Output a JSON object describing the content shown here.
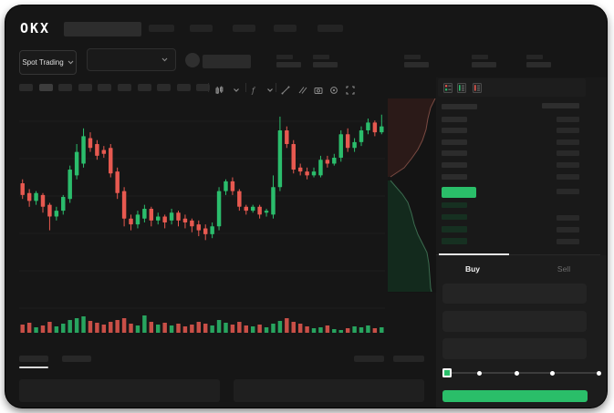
{
  "header": {
    "logo_text": "OKX",
    "pair_placeholder": true,
    "nav_placeholder_count": 5
  },
  "subheader": {
    "market_selector_label": "Spot Trading",
    "pair_dropdown_collapsed": true,
    "coin_avatar": true,
    "ticker_stat_placeholder_count": 5
  },
  "toolbar": {
    "interval_placeholder_count": 10,
    "active_interval_index": 1,
    "icons": [
      "candle-style-icon",
      "chevron-down-icon",
      "indicators-icon",
      "chevron-down-icon",
      "line-tool-icon",
      "compare-lines-icon",
      "camera-icon",
      "settings-icon",
      "fullscreen-icon"
    ]
  },
  "order_book": {
    "view_mode_icons": [
      "book-combined-icon",
      "book-bids-icon",
      "book-asks-icon"
    ],
    "ask_row_count": 6,
    "bid_row_count": 4,
    "bid_right_bar_rows": [
      1,
      2,
      3
    ],
    "current_price_highlight": true
  },
  "trade_panel": {
    "tabs": [
      {
        "label": "Buy",
        "active": true
      },
      {
        "label": "Sell",
        "active": false
      }
    ],
    "input_field_count": 3,
    "slider": {
      "stops": 5,
      "selected_index": 0
    },
    "submit_button_label": ""
  },
  "bottom_area": {
    "left_tab_placeholder_count": 2,
    "active_left_tab_index": 0,
    "right_tab_placeholder_count": 2,
    "panel_placeholder_count": 2
  },
  "colors": {
    "green": "#2bbd6c",
    "red": "#e75950",
    "price_highlight_green": "#2abe69",
    "ask_placeholder": "#2c2c2c",
    "bid_placeholder": "#163021",
    "placeholder": "#2a2a2a",
    "placeholder_dark": "#242424",
    "placeholder_light": "#3d3d3d",
    "grid_line": "#1e1e1e",
    "depth_ask_fill": "#2b1a18",
    "depth_ask_line": "#7a4a42",
    "depth_bid_fill": "#132a1d",
    "depth_bid_line": "#3b6b4f",
    "panel_bg": "#191919",
    "strip_bg": "#1d1d1d",
    "form_bg": "#1c1c1c",
    "field_bg": "#242424",
    "white": "#f2f2f2",
    "muted_text": "#6e6e6e",
    "icon_gray": "#8a8a8a"
  },
  "chart_data": [
    {
      "type": "candlestick",
      "title": "",
      "xlabel": "",
      "ylabel": "",
      "axis_labels_visible": false,
      "grid": "faint horizontal lines",
      "scale_note": "no numeric axes shown in UI; OHLC in normalized 0-100 units (100 = pane top)",
      "candles_ohlc": [
        [
          60,
          62,
          52,
          54
        ],
        [
          55,
          57,
          48,
          51
        ],
        [
          51,
          56,
          49,
          55
        ],
        [
          54,
          55,
          45,
          48
        ],
        [
          49,
          50,
          36,
          43
        ],
        [
          43,
          48,
          41,
          46
        ],
        [
          46,
          54,
          44,
          53
        ],
        [
          52,
          69,
          50,
          67
        ],
        [
          64,
          80,
          62,
          76
        ],
        [
          70,
          88,
          68,
          84
        ],
        [
          83,
          86,
          76,
          78
        ],
        [
          80,
          82,
          72,
          74
        ],
        [
          77,
          79,
          73,
          75
        ],
        [
          78,
          80,
          63,
          65
        ],
        [
          66,
          68,
          52,
          55
        ],
        [
          56,
          58,
          38,
          42
        ],
        [
          42,
          44,
          36,
          39
        ],
        [
          39,
          46,
          37,
          44
        ],
        [
          42,
          49,
          40,
          47
        ],
        [
          47,
          48,
          38,
          41
        ],
        [
          41,
          45,
          39,
          43
        ],
        [
          43,
          44,
          37,
          40
        ],
        [
          41,
          47,
          39,
          45
        ],
        [
          45,
          46,
          38,
          41
        ],
        [
          42,
          44,
          37,
          40
        ],
        [
          41,
          42,
          35,
          38
        ],
        [
          39,
          41,
          33,
          36
        ],
        [
          37,
          39,
          31,
          34
        ],
        [
          34,
          40,
          32,
          38
        ],
        [
          38,
          58,
          36,
          56
        ],
        [
          56,
          62,
          54,
          61
        ],
        [
          61,
          63,
          54,
          56
        ],
        [
          56,
          57,
          46,
          48
        ],
        [
          48,
          49,
          44,
          46
        ],
        [
          46,
          49,
          45,
          48
        ],
        [
          48,
          49,
          42,
          44
        ],
        [
          45,
          47,
          43,
          46
        ],
        [
          44,
          64,
          42,
          58
        ],
        [
          58,
          94,
          56,
          87
        ],
        [
          87,
          89,
          78,
          80
        ],
        [
          80,
          82,
          65,
          67
        ],
        [
          68,
          70,
          64,
          66
        ],
        [
          66,
          68,
          62,
          64
        ],
        [
          64,
          68,
          63,
          66
        ],
        [
          64,
          74,
          63,
          72
        ],
        [
          72,
          74,
          68,
          70
        ],
        [
          70,
          75,
          69,
          73
        ],
        [
          73,
          87,
          71,
          85
        ],
        [
          85,
          88,
          76,
          78
        ],
        [
          78,
          83,
          76,
          81
        ],
        [
          81,
          89,
          79,
          87
        ],
        [
          87,
          93,
          85,
          91
        ],
        [
          91,
          92,
          84,
          86
        ],
        [
          86,
          95,
          85,
          89
        ]
      ],
      "volume": [
        9,
        11,
        6,
        8,
        12,
        7,
        10,
        14,
        16,
        18,
        13,
        11,
        9,
        12,
        14,
        16,
        10,
        8,
        19,
        12,
        9,
        11,
        8,
        10,
        7,
        9,
        12,
        10,
        8,
        14,
        11,
        9,
        12,
        8,
        7,
        9,
        6,
        10,
        13,
        16,
        12,
        10,
        7,
        5,
        6,
        8,
        4,
        3,
        5,
        7,
        6,
        8,
        5,
        6
      ]
    },
    {
      "type": "area",
      "subtype": "depth",
      "orientation": "vertical",
      "note": "cumulative order-book depth strip; asks (red) top, bids (green) bottom, meeting at mid price",
      "ask_boundary": [
        [
          52,
          0
        ],
        [
          47,
          10
        ],
        [
          44,
          22
        ],
        [
          42,
          34
        ],
        [
          38,
          46
        ],
        [
          33,
          56
        ],
        [
          26,
          66
        ],
        [
          18,
          76
        ],
        [
          9,
          82
        ],
        [
          3,
          86
        ]
      ],
      "bid_boundary": [
        [
          3,
          90
        ],
        [
          9,
          97
        ],
        [
          16,
          105
        ],
        [
          22,
          114
        ],
        [
          26,
          126
        ],
        [
          29,
          138
        ],
        [
          33,
          149
        ],
        [
          38,
          159
        ],
        [
          43,
          169
        ],
        [
          45,
          181
        ],
        [
          46,
          194
        ],
        [
          47,
          208
        ],
        [
          48,
          212
        ]
      ]
    }
  ]
}
